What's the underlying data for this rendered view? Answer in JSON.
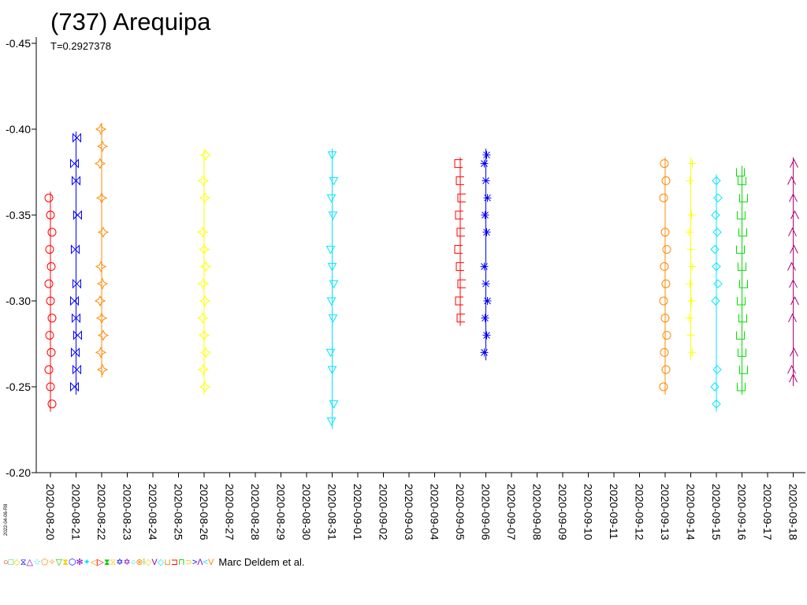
{
  "chart_data": {
    "type": "scatter",
    "title": "(737) Arequipa",
    "subtitle": "T=0.2927378",
    "xlabel": "",
    "ylabel": "",
    "ylim": [
      -0.2,
      -0.45
    ],
    "y_ticks": [
      "-0.45",
      "-0.40",
      "-0.35",
      "-0.30",
      "-0.25",
      "-0.20"
    ],
    "x_ticks": [
      "2020-08-20",
      "2020-08-21",
      "2020-08-22",
      "2020-08-23",
      "2020-08-24",
      "2020-08-25",
      "2020-08-26",
      "2020-08-27",
      "2020-08-28",
      "2020-08-29",
      "2020-08-30",
      "2020-08-31",
      "2020-09-01",
      "2020-09-02",
      "2020-09-03",
      "2020-09-04",
      "2020-09-05",
      "2020-09-06",
      "2020-09-07",
      "2020-09-08",
      "2020-09-09",
      "2020-09-10",
      "2020-09-11",
      "2020-09-12",
      "2020-09-13",
      "2020-09-14",
      "2020-09-15",
      "2020-09-16",
      "2020-09-17",
      "2020-09-18"
    ],
    "grid": false,
    "series": [
      {
        "color": "#ff0000",
        "marker": "circle",
        "x": "2020-08-20",
        "y": [
          -0.36,
          -0.35,
          -0.34,
          -0.33,
          -0.32,
          -0.31,
          -0.3,
          -0.29,
          -0.28,
          -0.27,
          -0.26,
          -0.25,
          -0.24
        ]
      },
      {
        "color": "#0000ff",
        "marker": "bowtie",
        "x": "2020-08-21",
        "y": [
          -0.395,
          -0.38,
          -0.37,
          -0.35,
          -0.33,
          -0.31,
          -0.3,
          -0.29,
          -0.28,
          -0.27,
          -0.26,
          -0.25
        ]
      },
      {
        "color": "#ff8800",
        "marker": "star",
        "x": "2020-08-22",
        "y": [
          -0.4,
          -0.39,
          -0.38,
          -0.36,
          -0.34,
          -0.32,
          -0.31,
          -0.3,
          -0.29,
          -0.28,
          -0.27,
          -0.26
        ]
      },
      {
        "color": "#ffff00",
        "marker": "star",
        "x": "2020-08-26",
        "y": [
          -0.385,
          -0.37,
          -0.36,
          -0.34,
          -0.33,
          -0.32,
          -0.31,
          -0.3,
          -0.29,
          -0.28,
          -0.27,
          -0.26,
          -0.25
        ]
      },
      {
        "color": "#00e5ff",
        "marker": "triangle-down",
        "x": "2020-08-31",
        "y": [
          -0.385,
          -0.37,
          -0.36,
          -0.35,
          -0.33,
          -0.32,
          -0.31,
          -0.3,
          -0.29,
          -0.27,
          -0.26,
          -0.24,
          -0.23
        ]
      },
      {
        "color": "#ff0000",
        "marker": "bracket",
        "x": "2020-09-05",
        "y": [
          -0.38,
          -0.37,
          -0.36,
          -0.35,
          -0.34,
          -0.33,
          -0.32,
          -0.31,
          -0.3,
          -0.29
        ]
      },
      {
        "color": "#0000ff",
        "marker": "asterisk",
        "x": "2020-09-06",
        "y": [
          -0.385,
          -0.38,
          -0.37,
          -0.36,
          -0.35,
          -0.34,
          -0.32,
          -0.31,
          -0.3,
          -0.29,
          -0.28,
          -0.27
        ]
      },
      {
        "color": "#ff8800",
        "marker": "circle",
        "x": "2020-09-13",
        "y": [
          -0.38,
          -0.37,
          -0.36,
          -0.34,
          -0.33,
          -0.32,
          -0.31,
          -0.3,
          -0.29,
          -0.28,
          -0.27,
          -0.26,
          -0.25
        ]
      },
      {
        "color": "#ffff00",
        "marker": "cross",
        "x": "2020-09-14",
        "y": [
          -0.38,
          -0.37,
          -0.35,
          -0.34,
          -0.33,
          -0.32,
          -0.31,
          -0.3,
          -0.29,
          -0.28,
          -0.27
        ]
      },
      {
        "color": "#00e5ff",
        "marker": "diamond-open",
        "x": "2020-09-15",
        "y": [
          -0.37,
          -0.36,
          -0.35,
          -0.34,
          -0.33,
          -0.32,
          -0.31,
          -0.3,
          -0.26,
          -0.25,
          -0.24
        ]
      },
      {
        "color": "#00dd00",
        "marker": "u",
        "x": "2020-09-16",
        "y": [
          -0.375,
          -0.37,
          -0.36,
          -0.35,
          -0.34,
          -0.33,
          -0.32,
          -0.31,
          -0.3,
          -0.29,
          -0.28,
          -0.27,
          -0.26,
          -0.25
        ]
      },
      {
        "color": "#b0007a",
        "marker": "caret",
        "x": "2020-09-18",
        "y": [
          -0.38,
          -0.37,
          -0.36,
          -0.35,
          -0.34,
          -0.33,
          -0.32,
          -0.31,
          -0.3,
          -0.29,
          -0.27,
          -0.26,
          -0.255
        ]
      }
    ]
  },
  "footer": {
    "credit": "Marc Deldem et al.",
    "symbols": [
      {
        "glyph": "○",
        "color": "#ff0000"
      },
      {
        "glyph": "□",
        "color": "#00cc00"
      },
      {
        "glyph": "◇",
        "color": "#ffcc00"
      },
      {
        "glyph": "⧖",
        "color": "#0000ff"
      },
      {
        "glyph": "△",
        "color": "#8800cc"
      },
      {
        "glyph": "☆",
        "color": "#00e5ff"
      },
      {
        "glyph": "⬠",
        "color": "#ff8800"
      },
      {
        "glyph": "✧",
        "color": "#ff8800"
      },
      {
        "glyph": "▽",
        "color": "#00cc00"
      },
      {
        "glyph": "⧗",
        "color": "#ffcc00"
      },
      {
        "glyph": "⬡",
        "color": "#0000ff"
      },
      {
        "glyph": "✻",
        "color": "#8800cc"
      },
      {
        "glyph": "✦",
        "color": "#00e5ff"
      },
      {
        "glyph": "◁",
        "color": "#ff8800"
      },
      {
        "glyph": "▷",
        "color": "#ff0000"
      },
      {
        "glyph": "⧗",
        "color": "#00cc00"
      },
      {
        "glyph": "⧖",
        "color": "#ffcc00"
      },
      {
        "glyph": "✡",
        "color": "#0000ff"
      },
      {
        "glyph": "✡",
        "color": "#8800cc"
      },
      {
        "glyph": "○",
        "color": "#00e5ff"
      },
      {
        "glyph": "⊗",
        "color": "#ff8800"
      },
      {
        "glyph": "⦚",
        "color": "#00cc00"
      },
      {
        "glyph": "◇",
        "color": "#ffcc00"
      },
      {
        "glyph": "V",
        "color": "#8800cc"
      },
      {
        "glyph": "◇",
        "color": "#00e5ff"
      },
      {
        "glyph": "⊔",
        "color": "#ff8800"
      },
      {
        "glyph": "⊐",
        "color": "#ff0000"
      },
      {
        "glyph": "⊓",
        "color": "#00cc00"
      },
      {
        "glyph": "⊃",
        "color": "#ffcc00"
      },
      {
        "glyph": ">",
        "color": "#0000ff"
      },
      {
        "glyph": "Λ",
        "color": "#8800cc"
      },
      {
        "glyph": "<",
        "color": "#00e5ff"
      },
      {
        "glyph": "V",
        "color": "#ff8800"
      }
    ]
  },
  "stamp": "2022-04-06-R8"
}
